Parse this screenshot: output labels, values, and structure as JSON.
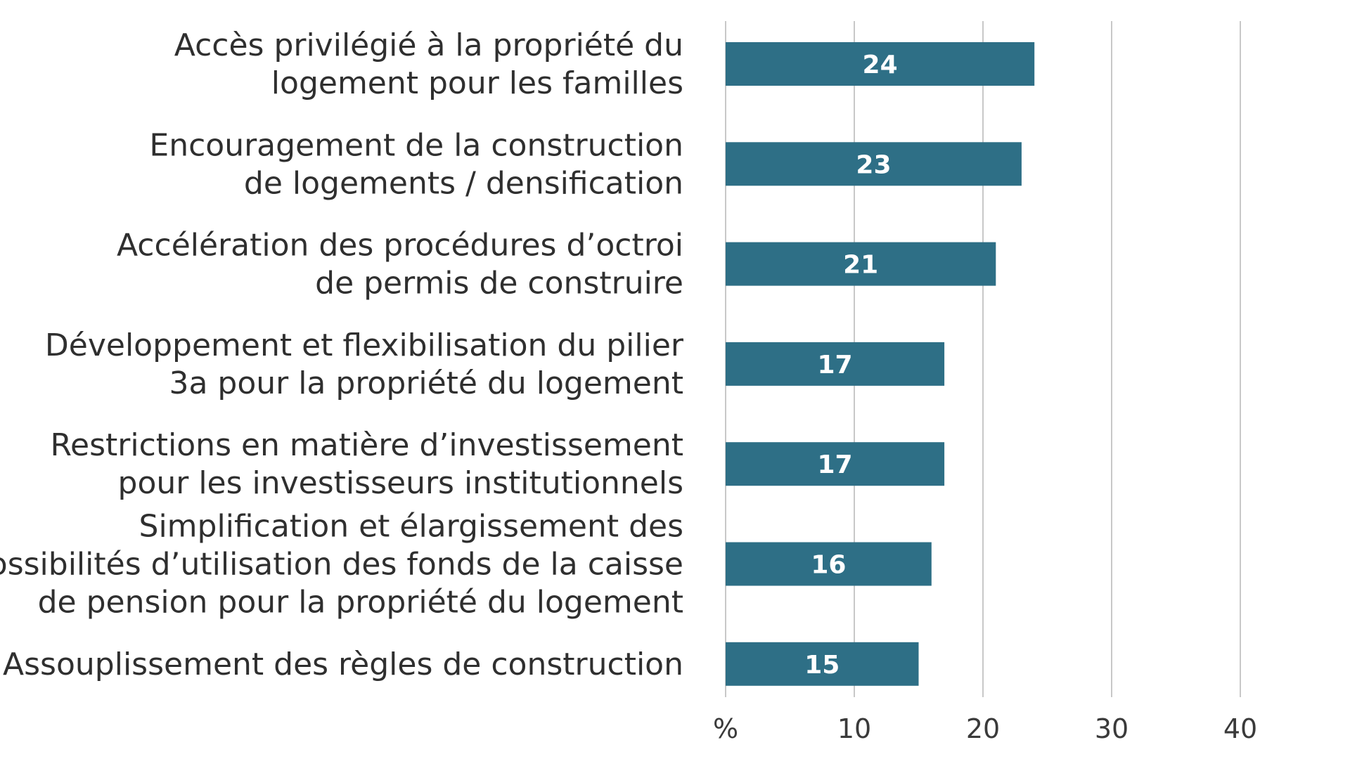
{
  "chart_data": {
    "type": "bar",
    "orientation": "horizontal",
    "title": "",
    "xlabel": "",
    "ylabel": "",
    "unit_label": "%",
    "xlim": [
      0,
      40
    ],
    "ticks": [
      {
        "value": 0,
        "label": "%"
      },
      {
        "value": 10,
        "label": "10"
      },
      {
        "value": 20,
        "label": "20"
      },
      {
        "value": 30,
        "label": "30"
      },
      {
        "value": 40,
        "label": "40"
      }
    ],
    "grid": true,
    "bar_color": "#2e6f86",
    "categories": [
      [
        "Accès privilégié à la propriété du",
        "logement pour les familles"
      ],
      [
        "Encouragement de la construction",
        "de logements / densification"
      ],
      [
        "Accélération des procédures d’octroi",
        "de permis de construire"
      ],
      [
        "Développement et flexibilisation du pilier",
        "3a pour la propriété du logement"
      ],
      [
        "Restrictions en matière d’investissement",
        "pour les investisseurs institutionnels"
      ],
      [
        "Simplification et élargissement des",
        "possibilités d’utilisation des fonds de la caisse",
        "de pension pour la propriété du logement"
      ],
      [
        "Assouplissement des règles de construction"
      ]
    ],
    "values": [
      24,
      23,
      21,
      17,
      17,
      16,
      15
    ],
    "data_labels": [
      "24",
      "23",
      "21",
      "17",
      "17",
      "16",
      "15"
    ]
  }
}
